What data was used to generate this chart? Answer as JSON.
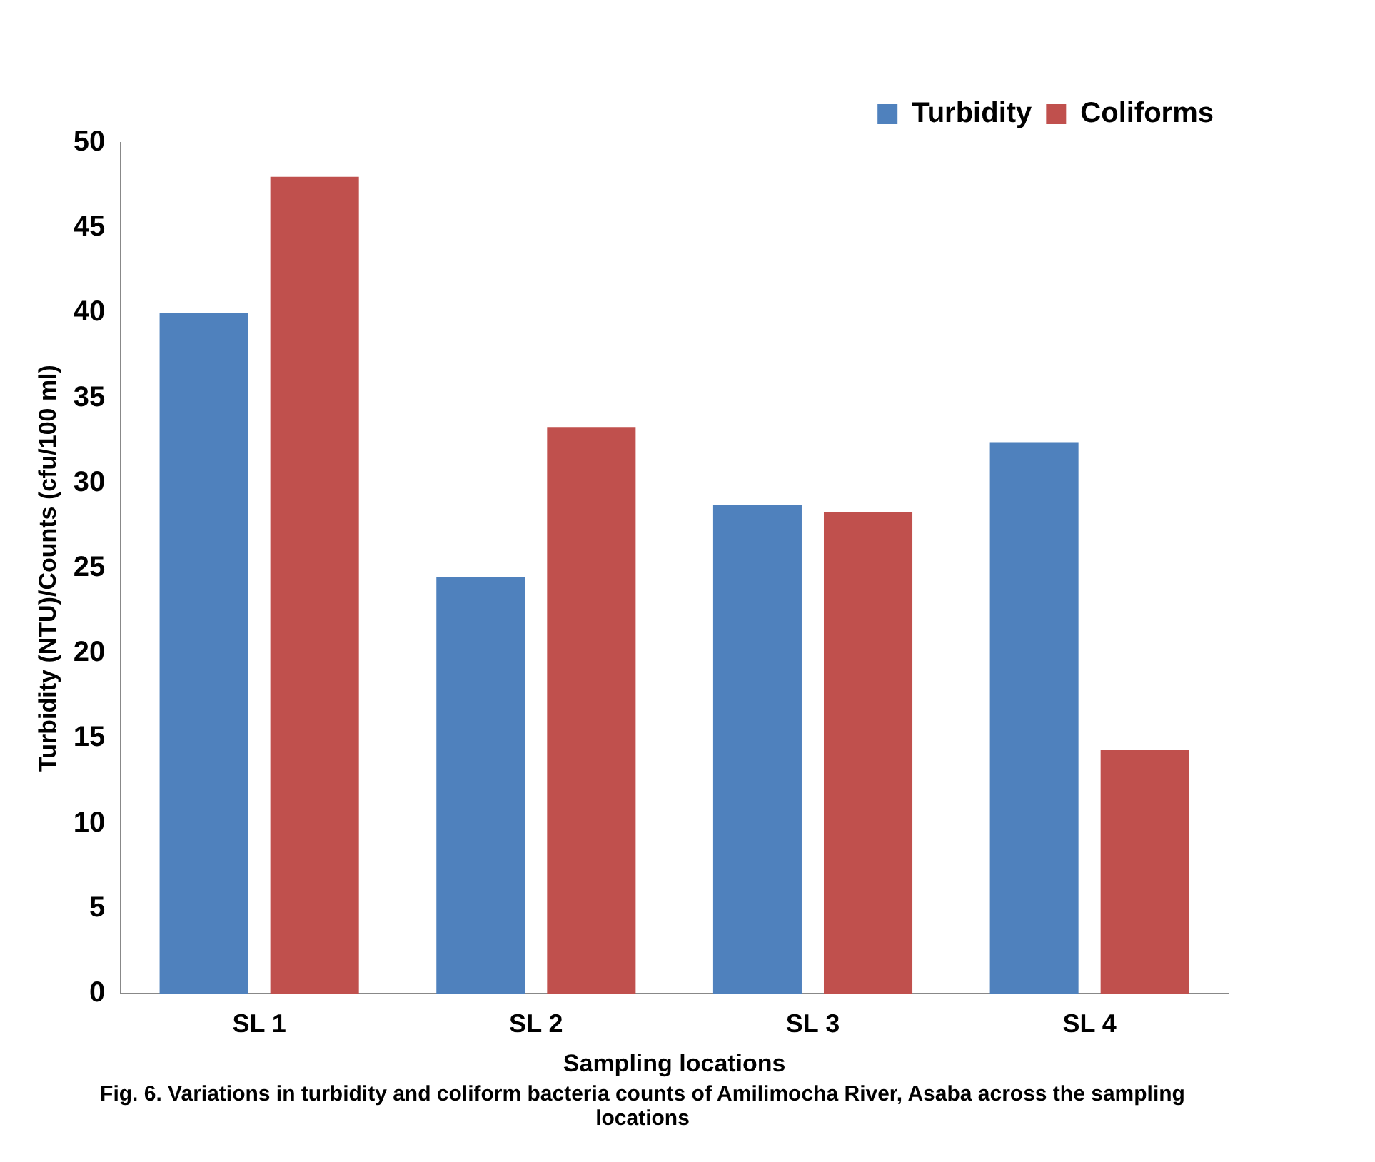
{
  "chart_data": {
    "type": "bar",
    "title": "Fig. 6. Variations in turbidity and coliform bacteria counts of Amilimocha River, Asaba across the sampling locations",
    "xlabel": "Sampling locations",
    "ylabel": "Turbidity (NTU)/Counts (cfu/100 ml)",
    "categories": [
      "SL 1",
      "SL 2",
      "SL 3",
      "SL 4"
    ],
    "series": [
      {
        "name": "Turbidity",
        "color": "#4f81bd",
        "values": [
          40,
          24.5,
          28.7,
          32.4
        ]
      },
      {
        "name": "Coliforms",
        "color": "#c0504d",
        "values": [
          48,
          33.3,
          28.3,
          14.3
        ]
      }
    ],
    "ylim": [
      0,
      50
    ],
    "yticks": [
      0,
      5,
      10,
      15,
      20,
      25,
      30,
      35,
      40,
      45,
      50
    ],
    "grid": false,
    "legend": "top right"
  }
}
